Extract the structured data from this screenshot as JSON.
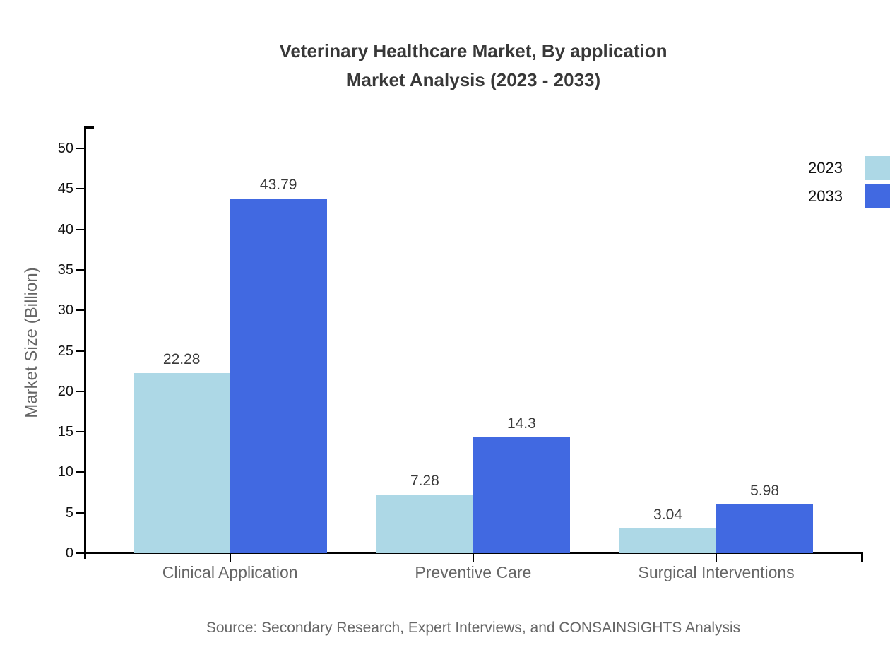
{
  "chart": {
    "title_line1": "Veterinary Healthcare Market, By application",
    "title_line2": "Market Analysis (2023 - 2033)",
    "ylabel": "Market Size (Billion)",
    "source": "Source: Secondary Research, Expert Interviews, and CONSAINSIGHTS Analysis"
  },
  "chart_data": {
    "type": "bar",
    "title": "Veterinary Healthcare Market, By application Market Analysis (2023 - 2033)",
    "categories": [
      "Clinical Application",
      "Preventive Care",
      "Surgical Interventions"
    ],
    "series": [
      {
        "name": "2023",
        "color": "#ADD8E6",
        "values": [
          22.28,
          7.28,
          3.04
        ]
      },
      {
        "name": "2033",
        "color": "#4169E1",
        "values": [
          43.79,
          14.3,
          5.98
        ]
      }
    ],
    "value_labels": [
      "22.28",
      "43.79",
      "7.28",
      "14.3",
      "3.04",
      "5.98"
    ],
    "xlabel": "",
    "ylabel": "Market Size (Billion)",
    "ylim": [
      0,
      50
    ],
    "ytick_step": 5,
    "yticks": [
      0,
      5,
      10,
      15,
      20,
      25,
      30,
      35,
      40,
      45,
      50
    ],
    "grid": false,
    "legend_position": "top-right",
    "background": "#ffffff",
    "axis_color": "#000000",
    "text_colors": {
      "title": "#383838",
      "tick_labels": "#111111",
      "category_labels": "#666666",
      "value_labels": "#3a3a3a",
      "source": "#666666"
    }
  }
}
